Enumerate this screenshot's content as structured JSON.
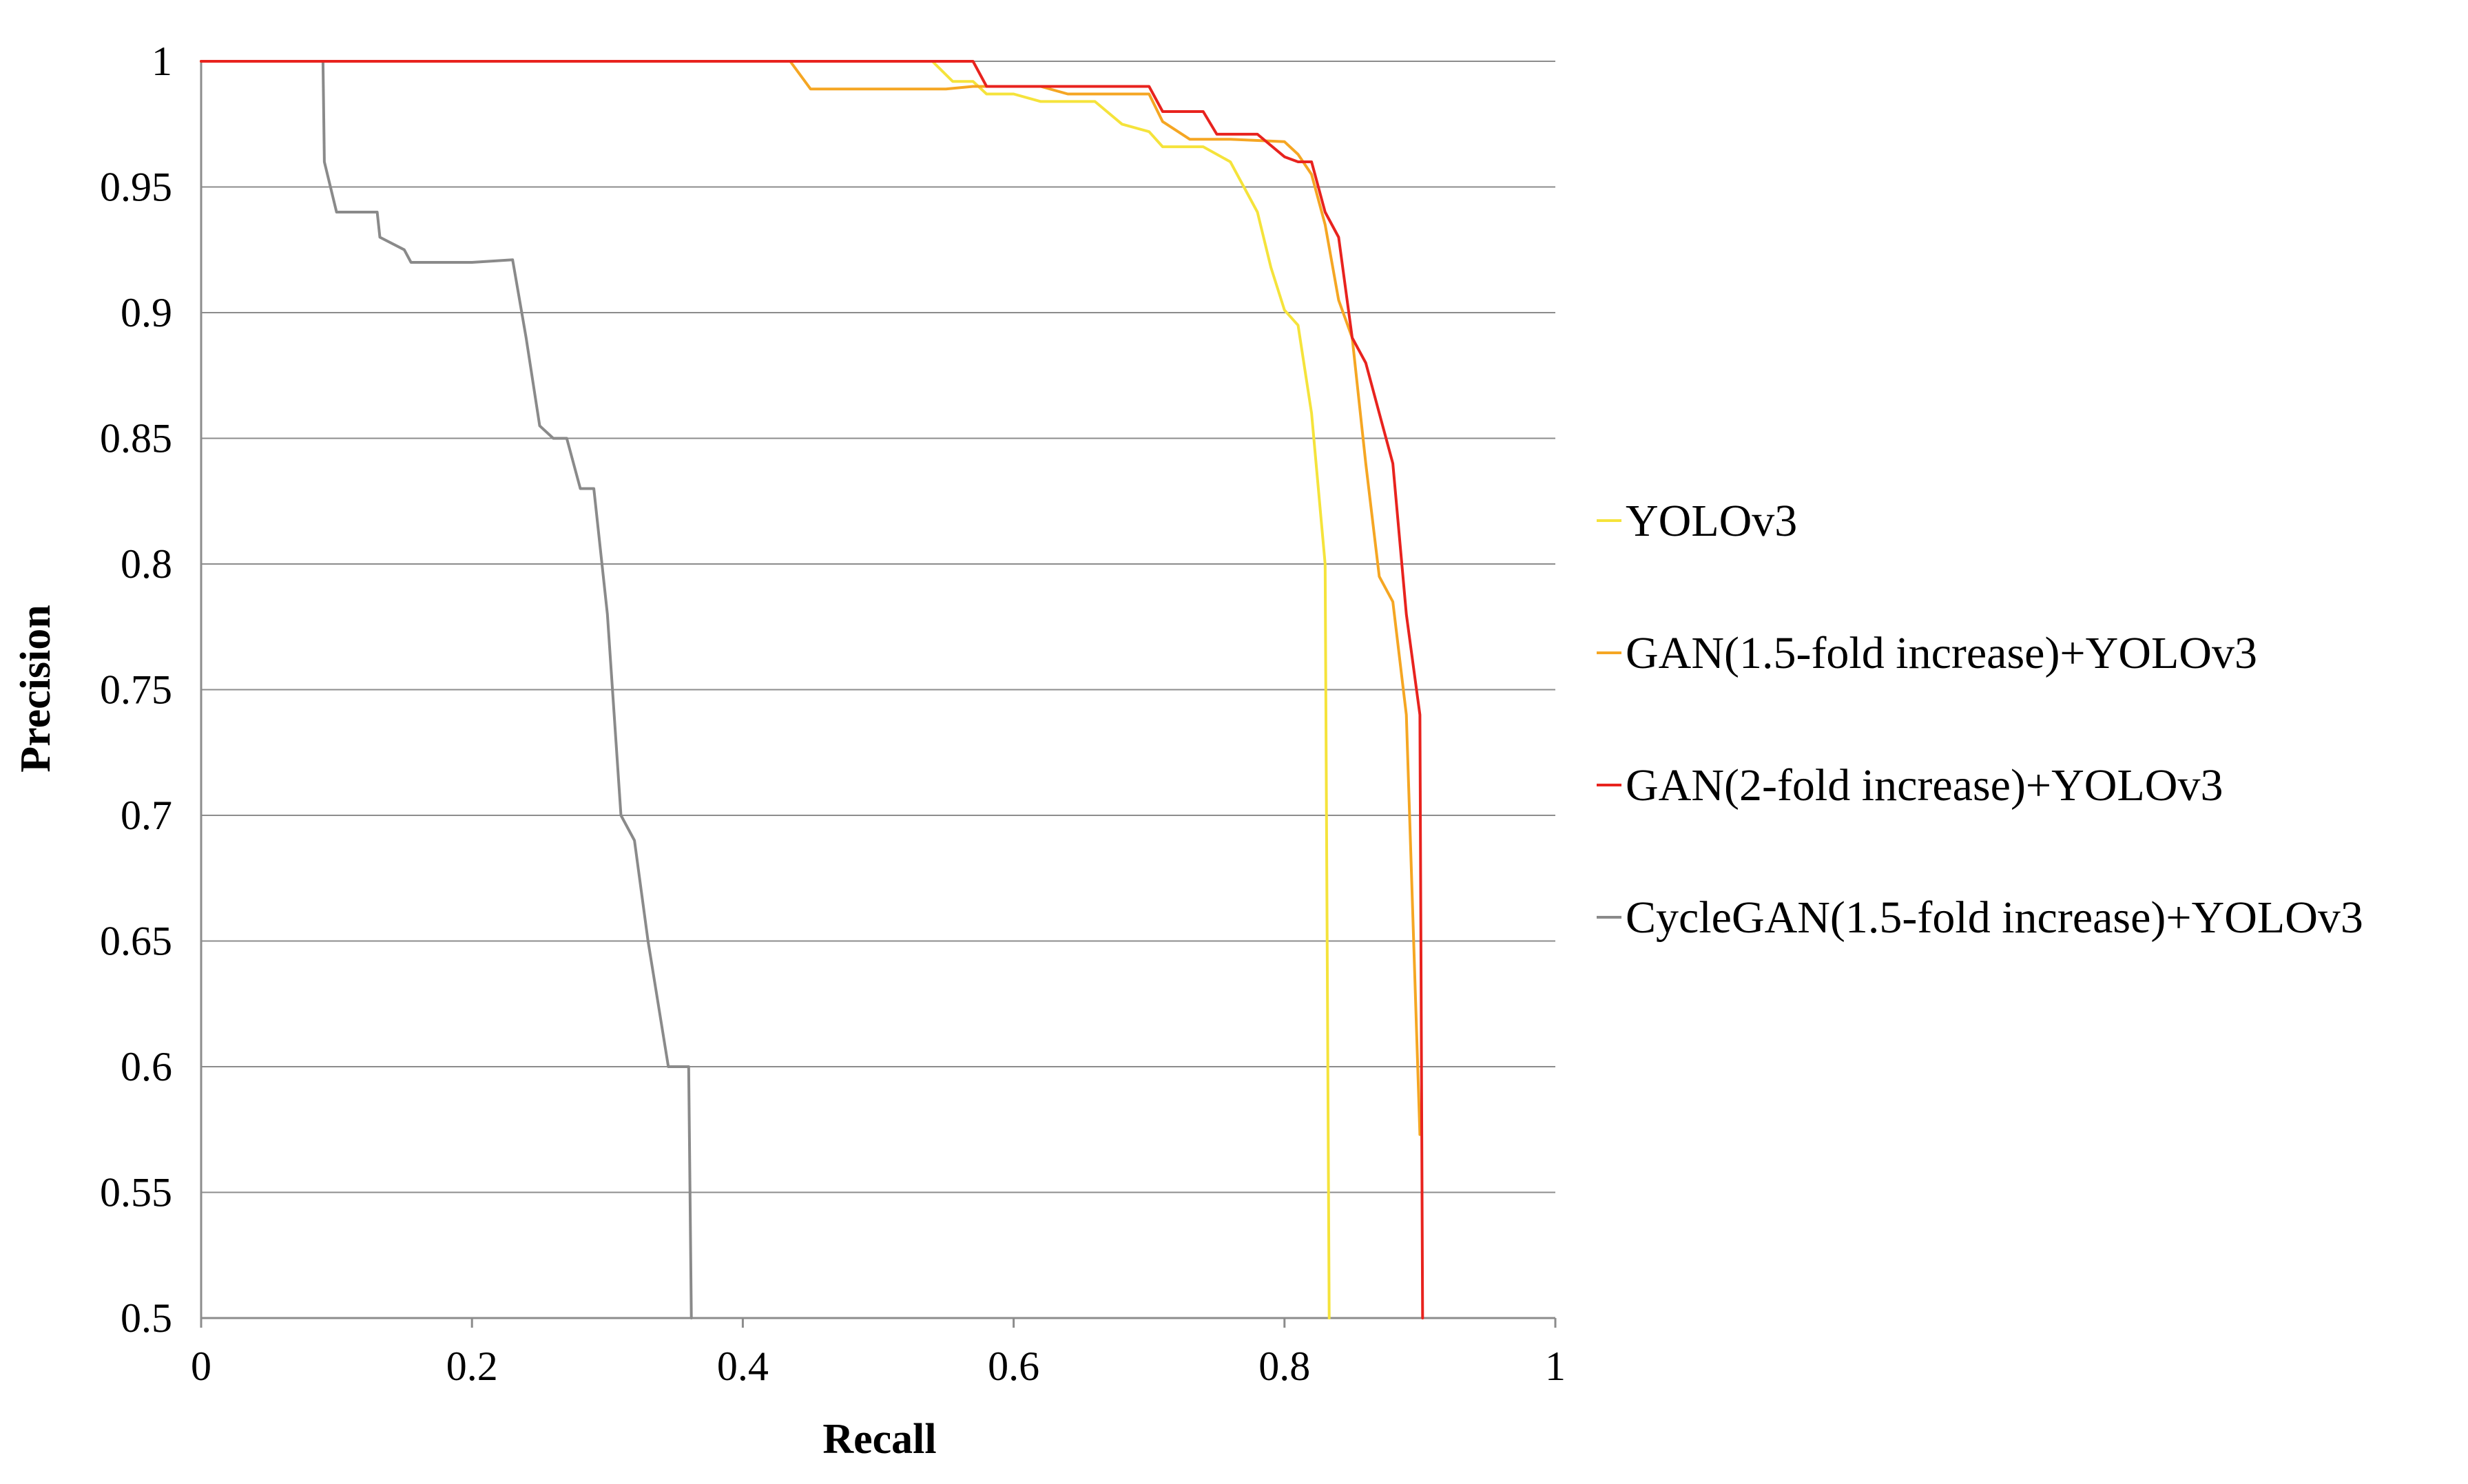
{
  "chart_data": {
    "type": "line",
    "title": "",
    "xlabel": "Recall",
    "ylabel": "Precision",
    "xlim": [
      0,
      1
    ],
    "ylim": [
      0.5,
      1
    ],
    "grid": true,
    "legend_position": "right",
    "x_ticks": [
      "0",
      "0.2",
      "0.4",
      "0.6",
      "0.8",
      "1"
    ],
    "y_ticks": [
      "1",
      "0.95",
      "0.9",
      "0.85",
      "0.8",
      "0.75",
      "0.7",
      "0.65",
      "0.6",
      "0.55",
      "0.5"
    ],
    "x_tick_values": [
      0,
      0.2,
      0.4,
      0.6,
      0.8,
      1
    ],
    "y_tick_values": [
      1,
      0.95,
      0.9,
      0.85,
      0.8,
      0.75,
      0.7,
      0.65,
      0.6,
      0.55,
      0.5
    ],
    "series": [
      {
        "name": "YOLOv3",
        "color": "#f5e33b",
        "points": [
          [
            0,
            1
          ],
          [
            0.54,
            1
          ],
          [
            0.555,
            0.992
          ],
          [
            0.57,
            0.992
          ],
          [
            0.58,
            0.987
          ],
          [
            0.6,
            0.987
          ],
          [
            0.62,
            0.984
          ],
          [
            0.66,
            0.984
          ],
          [
            0.68,
            0.975
          ],
          [
            0.7,
            0.972
          ],
          [
            0.71,
            0.966
          ],
          [
            0.74,
            0.966
          ],
          [
            0.76,
            0.96
          ],
          [
            0.78,
            0.94
          ],
          [
            0.79,
            0.918
          ],
          [
            0.8,
            0.901
          ],
          [
            0.81,
            0.895
          ],
          [
            0.82,
            0.86
          ],
          [
            0.83,
            0.8
          ],
          [
            0.833,
            0.5
          ]
        ]
      },
      {
        "name": "GAN(1.5-fold increase)+YOLOv3",
        "color": "#f5a623",
        "points": [
          [
            0,
            1
          ],
          [
            0.435,
            1
          ],
          [
            0.45,
            0.989
          ],
          [
            0.55,
            0.989
          ],
          [
            0.57,
            0.99
          ],
          [
            0.62,
            0.99
          ],
          [
            0.64,
            0.987
          ],
          [
            0.69,
            0.987
          ],
          [
            0.7,
            0.987
          ],
          [
            0.71,
            0.976
          ],
          [
            0.73,
            0.969
          ],
          [
            0.76,
            0.969
          ],
          [
            0.8,
            0.968
          ],
          [
            0.81,
            0.963
          ],
          [
            0.82,
            0.955
          ],
          [
            0.83,
            0.935
          ],
          [
            0.84,
            0.905
          ],
          [
            0.85,
            0.89
          ],
          [
            0.86,
            0.84
          ],
          [
            0.87,
            0.795
          ],
          [
            0.88,
            0.785
          ],
          [
            0.89,
            0.74
          ],
          [
            0.9,
            0.573
          ]
        ]
      },
      {
        "name": "GAN(2-fold increase)+YOLOv3",
        "color": "#e8231e",
        "points": [
          [
            0,
            1
          ],
          [
            0.57,
            1
          ],
          [
            0.58,
            0.99
          ],
          [
            0.7,
            0.99
          ],
          [
            0.71,
            0.98
          ],
          [
            0.73,
            0.98
          ],
          [
            0.74,
            0.98
          ],
          [
            0.75,
            0.971
          ],
          [
            0.78,
            0.971
          ],
          [
            0.8,
            0.962
          ],
          [
            0.81,
            0.96
          ],
          [
            0.82,
            0.96
          ],
          [
            0.83,
            0.94
          ],
          [
            0.84,
            0.93
          ],
          [
            0.85,
            0.89
          ],
          [
            0.86,
            0.88
          ],
          [
            0.87,
            0.86
          ],
          [
            0.88,
            0.84
          ],
          [
            0.89,
            0.78
          ],
          [
            0.9,
            0.74
          ],
          [
            0.902,
            0.5
          ]
        ]
      },
      {
        "name": "CycleGAN(1.5-fold increase)+YOLOv3",
        "color": "#8a8a8a",
        "points": [
          [
            0,
            1
          ],
          [
            0.09,
            1
          ],
          [
            0.091,
            0.96
          ],
          [
            0.1,
            0.94
          ],
          [
            0.13,
            0.94
          ],
          [
            0.132,
            0.93
          ],
          [
            0.15,
            0.925
          ],
          [
            0.155,
            0.92
          ],
          [
            0.2,
            0.92
          ],
          [
            0.23,
            0.921
          ],
          [
            0.24,
            0.89
          ],
          [
            0.25,
            0.855
          ],
          [
            0.26,
            0.85
          ],
          [
            0.27,
            0.85
          ],
          [
            0.28,
            0.83
          ],
          [
            0.29,
            0.83
          ],
          [
            0.3,
            0.78
          ],
          [
            0.31,
            0.7
          ],
          [
            0.32,
            0.69
          ],
          [
            0.33,
            0.65
          ],
          [
            0.345,
            0.6
          ],
          [
            0.36,
            0.6
          ],
          [
            0.362,
            0.5
          ]
        ]
      }
    ]
  }
}
